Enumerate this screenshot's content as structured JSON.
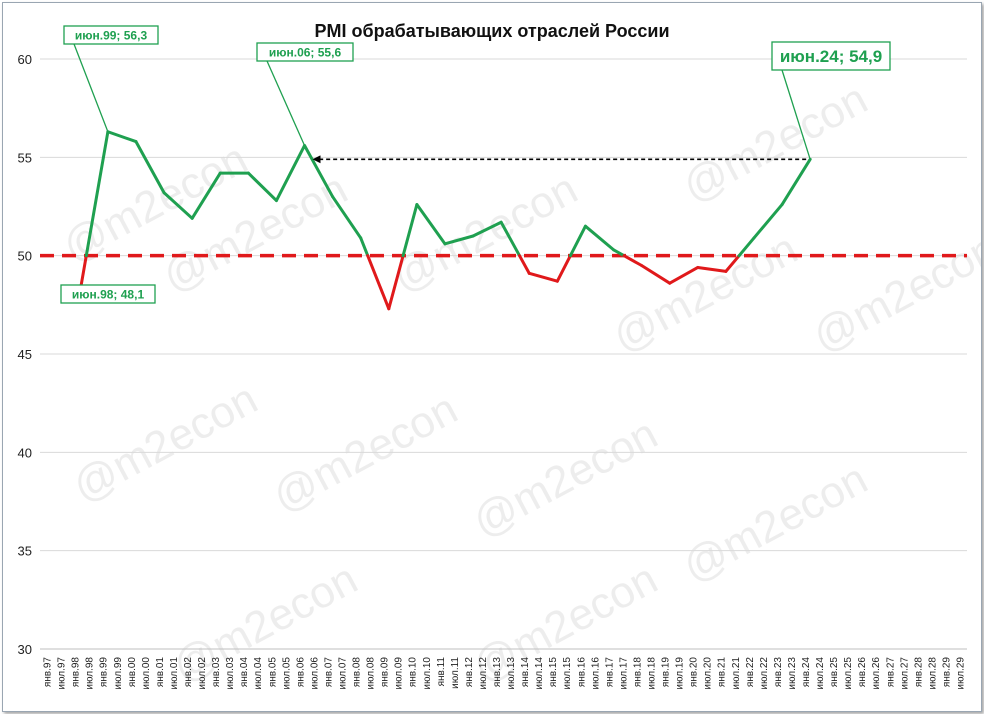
{
  "colors": {
    "above": "#1fa050",
    "below": "#e0191b",
    "threshold": "#e0191b",
    "grid": "#d9d9d9",
    "arrow": "#000000"
  },
  "watermark": "@m2econ",
  "chart_data": {
    "type": "line",
    "title": "PMI обрабатывающих отраслей России",
    "ylim": [
      30,
      60
    ],
    "yticks": [
      30,
      35,
      40,
      45,
      50,
      55,
      60
    ],
    "grid": "horizontal",
    "threshold": 50,
    "x_tick_labels": [
      "янв.97",
      "июл.97",
      "янв.98",
      "июл.98",
      "янв.99",
      "июл.99",
      "янв.00",
      "июл.00",
      "янв.01",
      "июл.01",
      "янв.02",
      "июл.02",
      "янв.03",
      "июл.03",
      "янв.04",
      "июл.04",
      "янв.05",
      "июл.05",
      "янв.06",
      "июл.06",
      "янв.07",
      "июл.07",
      "янв.08",
      "июл.08",
      "янв.09",
      "июл.09",
      "янв.10",
      "июл.10",
      "янв.11",
      "июл.11",
      "янв.12",
      "июл.12",
      "янв.13",
      "июл.13",
      "янв.14",
      "июл.14",
      "янв.15",
      "июл.15",
      "янв.16",
      "июл.16",
      "янв.17",
      "июл.17",
      "янв.18",
      "июл.18",
      "янв.19",
      "июл.19",
      "янв.20",
      "июл.20",
      "янв.21",
      "июл.21",
      "янв.22",
      "июл.22",
      "янв.23",
      "июл.23",
      "янв.24",
      "июл.24",
      "янв.25",
      "июл.25",
      "янв.26",
      "июл.26",
      "янв.27",
      "июл.27",
      "янв.28",
      "июл.28",
      "янв.29",
      "июл.29"
    ],
    "series": [
      {
        "x": [
          "июн.98",
          "июн.99",
          "июн.00",
          "июн.01",
          "июн.02",
          "июн.03",
          "июн.04",
          "июн.05",
          "июн.06",
          "июн.07",
          "июн.08",
          "июн.09",
          "июн.10",
          "июн.11",
          "июн.12",
          "июн.13",
          "июн.14",
          "июн.15",
          "июн.16",
          "июн.17",
          "июн.18",
          "июн.19",
          "июн.20",
          "июн.21",
          "июн.22",
          "июн.23",
          "июн.24"
        ],
        "values": [
          48.1,
          56.3,
          55.8,
          53.2,
          51.9,
          54.2,
          54.2,
          52.8,
          55.6,
          53.0,
          50.9,
          47.3,
          52.6,
          50.6,
          51.0,
          51.7,
          49.1,
          48.7,
          51.5,
          50.3,
          49.5,
          48.6,
          49.4,
          49.2,
          50.9,
          52.6,
          54.9
        ]
      }
    ],
    "annotations": [
      {
        "x": "июн.98",
        "y": 48.1,
        "text": "июн.98; 48,1"
      },
      {
        "x": "июн.99",
        "y": 56.3,
        "text": "июн.99; 56,3"
      },
      {
        "x": "июн.06",
        "y": 55.6,
        "text": "июн.06; 55,6"
      },
      {
        "x": "июн.24",
        "y": 54.9,
        "text": "июн.24; 54,9"
      }
    ],
    "arrow": {
      "from": "июн.24",
      "to": "июн.06",
      "y": 54.9,
      "style": "dashed"
    }
  }
}
